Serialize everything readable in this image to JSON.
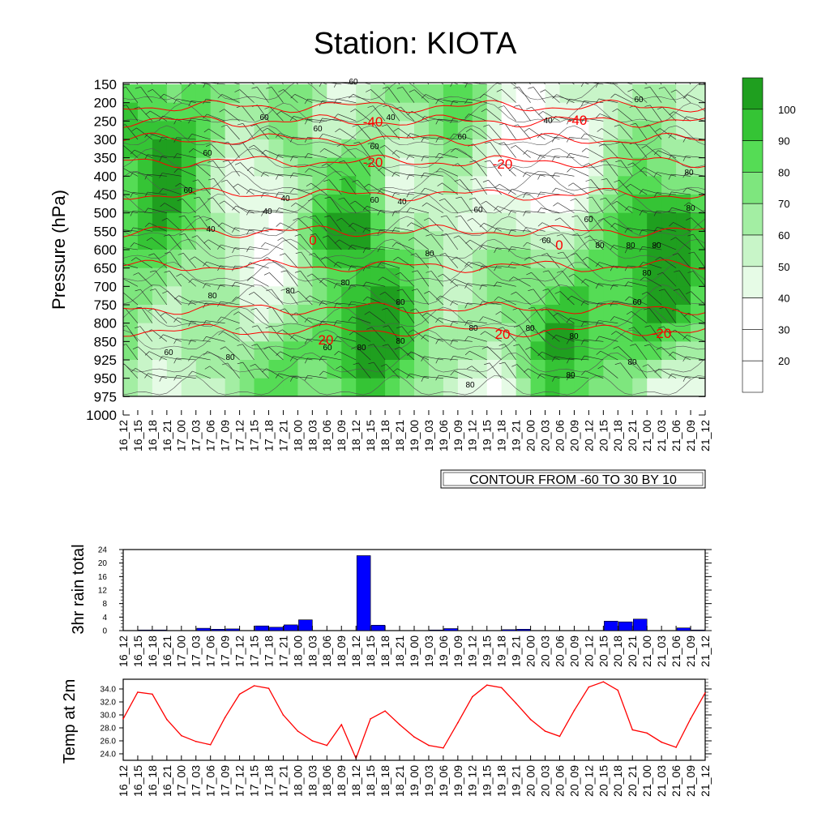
{
  "title": "Station: KIOTA",
  "colors": {
    "green_scale": [
      "#ffffff",
      "#e6fbe6",
      "#c8f5c8",
      "#a3eea3",
      "#7ee67e",
      "#55dc55",
      "#35c435",
      "#1f9f1f"
    ],
    "temp_contour": "#ff0000",
    "rain_bar": "#0000ff",
    "temp_line": "#ff0000"
  },
  "time_labels": [
    "16_12",
    "16_15",
    "16_18",
    "16_21",
    "17_00",
    "17_03",
    "17_06",
    "17_09",
    "17_12",
    "17_15",
    "17_18",
    "17_21",
    "18_00",
    "18_03",
    "18_06",
    "18_09",
    "18_12",
    "18_15",
    "18_18",
    "18_21",
    "19_00",
    "19_03",
    "19_06",
    "19_09",
    "19_12",
    "19_15",
    "19_18",
    "19_21",
    "20_00",
    "20_03",
    "20_06",
    "20_09",
    "20_12",
    "20_15",
    "20_18",
    "20_21",
    "21_00",
    "21_03",
    "21_06",
    "21_09",
    "21_12"
  ],
  "chart_data": [
    {
      "type": "heatmap",
      "name": "relative humidity with temperature contours and wind barbs",
      "ylabel": "Pressure (hPa)",
      "y_ticks": [
        150,
        200,
        250,
        300,
        350,
        400,
        450,
        500,
        550,
        600,
        650,
        700,
        750,
        800,
        850,
        925,
        950,
        975,
        1000
      ],
      "colorbar": {
        "levels": [
          20,
          30,
          40,
          50,
          60,
          70,
          80,
          90,
          100
        ],
        "labels": [
          "100",
          "90",
          "80",
          "70",
          "60",
          "50",
          "40",
          "30",
          "20"
        ]
      },
      "contour_note": "CONTOUR FROM -60 TO 30 BY 10",
      "temp_contour_labels": [
        "-40",
        "-40",
        "-20",
        "-20",
        "0",
        "0",
        "20",
        "20",
        "-20"
      ],
      "rh_contour_labels": [
        "40",
        "40",
        "60",
        "60",
        "60",
        "60",
        "60",
        "60",
        "60",
        "60",
        "40",
        "40",
        "40",
        "40",
        "60",
        "60",
        "60",
        "60",
        "80",
        "80",
        "80",
        "80",
        "80",
        "80",
        "80",
        "80",
        "80",
        "80",
        "80",
        "80",
        "80",
        "60",
        "80",
        "80",
        "60",
        "60",
        "80",
        "80",
        "80",
        "80",
        "80"
      ]
    },
    {
      "type": "bar",
      "ylabel": "3hr rain total",
      "y_ticks": [
        "24",
        "20",
        "16",
        "12",
        "8",
        "4",
        "0"
      ],
      "ylim": [
        0,
        24
      ],
      "categories": [
        "16_12",
        "16_15",
        "16_18",
        "16_21",
        "17_00",
        "17_03",
        "17_06",
        "17_09",
        "17_12",
        "17_15",
        "17_18",
        "17_21",
        "18_00",
        "18_03",
        "18_06",
        "18_09",
        "18_12",
        "18_15",
        "18_18",
        "18_21",
        "19_00",
        "19_03",
        "19_06",
        "19_09",
        "19_12",
        "19_15",
        "19_18",
        "19_21",
        "20_00",
        "20_03",
        "20_06",
        "20_09",
        "20_12",
        "20_15",
        "20_18",
        "20_21",
        "21_00",
        "21_03",
        "21_06",
        "21_09",
        "21_12"
      ],
      "values": [
        0,
        0.2,
        0.2,
        0,
        0,
        0.7,
        0.4,
        0.5,
        0,
        1.4,
        1.0,
        1.7,
        3.2,
        0,
        0,
        0,
        22.2,
        1.6,
        0,
        0,
        0,
        0.2,
        0.6,
        0,
        0,
        0,
        0.3,
        0.4,
        0,
        0,
        0,
        0,
        0,
        2.8,
        2.6,
        3.4,
        0,
        0,
        0.8,
        0.2,
        0
      ]
    },
    {
      "type": "line",
      "ylabel": "Temp at 2m",
      "y_ticks": [
        "34.0",
        "32.0",
        "30.0",
        "28.0",
        "26.0",
        "24.0"
      ],
      "ylim": [
        23,
        35.5
      ],
      "categories": [
        "16_12",
        "16_15",
        "16_18",
        "16_21",
        "17_00",
        "17_03",
        "17_06",
        "17_09",
        "17_12",
        "17_15",
        "17_18",
        "17_21",
        "18_00",
        "18_03",
        "18_06",
        "18_09",
        "18_12",
        "18_15",
        "18_18",
        "18_21",
        "19_00",
        "19_03",
        "19_06",
        "19_09",
        "19_12",
        "19_15",
        "19_18",
        "19_21",
        "20_00",
        "20_03",
        "20_06",
        "20_09",
        "20_12",
        "20_15",
        "20_18",
        "20_21",
        "21_00",
        "21_03",
        "21_06",
        "21_09",
        "21_12"
      ],
      "values": [
        29.4,
        33.5,
        33.2,
        29.3,
        26.8,
        25.9,
        25.4,
        29.6,
        33.2,
        34.5,
        34.1,
        30.0,
        27.5,
        26.0,
        25.3,
        28.5,
        23.3,
        29.4,
        30.6,
        28.5,
        26.6,
        25.3,
        24.9,
        28.8,
        32.8,
        34.6,
        34.2,
        31.8,
        29.3,
        27.5,
        26.7,
        30.7,
        34.3,
        35.1,
        33.8,
        27.7,
        27.2,
        25.8,
        25.0,
        29.4,
        33.4
      ]
    }
  ]
}
